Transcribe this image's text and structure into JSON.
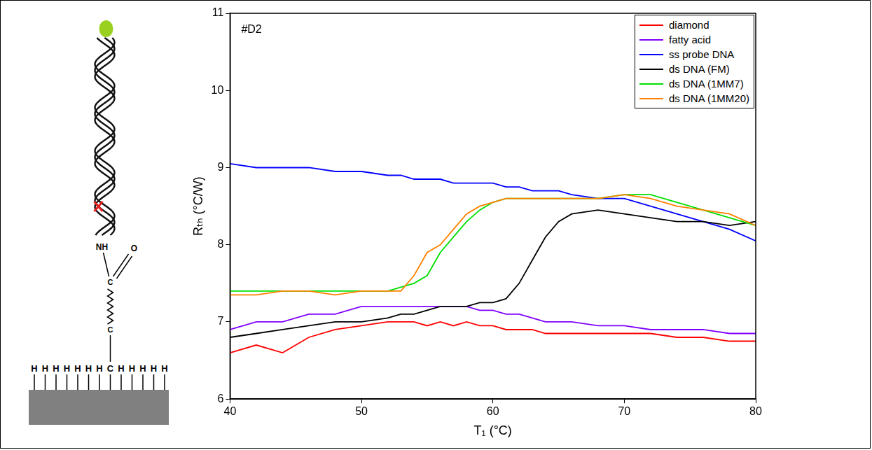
{
  "chart_data": {
    "type": "line",
    "annotation": "#D2",
    "x_label": "T₁ (°C)",
    "y_label": "Rₜₕ (°C/W)",
    "x": [
      40,
      42,
      44,
      46,
      48,
      50,
      52,
      53,
      54,
      55,
      56,
      57,
      58,
      59,
      60,
      61,
      62,
      63,
      64,
      65,
      66,
      68,
      70,
      72,
      74,
      76,
      78,
      80
    ],
    "series": [
      {
        "name": "diamond",
        "color": "#ff0000",
        "values": [
          6.6,
          6.7,
          6.6,
          6.8,
          6.9,
          6.95,
          7.0,
          7.0,
          7.0,
          6.95,
          7.0,
          6.95,
          7.0,
          6.95,
          6.95,
          6.9,
          6.9,
          6.9,
          6.85,
          6.85,
          6.85,
          6.85,
          6.85,
          6.85,
          6.8,
          6.8,
          6.75,
          6.75
        ]
      },
      {
        "name": "fatty acid",
        "color": "#8000ff",
        "values": [
          6.9,
          7.0,
          7.0,
          7.1,
          7.1,
          7.2,
          7.2,
          7.2,
          7.2,
          7.2,
          7.2,
          7.2,
          7.2,
          7.15,
          7.15,
          7.1,
          7.1,
          7.05,
          7.0,
          7.0,
          7.0,
          6.95,
          6.95,
          6.9,
          6.9,
          6.9,
          6.85,
          6.85
        ]
      },
      {
        "name": "ss probe DNA",
        "color": "#0000ff",
        "values": [
          9.05,
          9.0,
          9.0,
          9.0,
          8.95,
          8.95,
          8.9,
          8.9,
          8.85,
          8.85,
          8.85,
          8.8,
          8.8,
          8.8,
          8.8,
          8.75,
          8.75,
          8.7,
          8.7,
          8.7,
          8.65,
          8.6,
          8.6,
          8.5,
          8.4,
          8.3,
          8.2,
          8.05
        ]
      },
      {
        "name": "ds DNA (FM)",
        "color": "#000000",
        "values": [
          6.8,
          6.85,
          6.9,
          6.95,
          7.0,
          7.0,
          7.05,
          7.1,
          7.1,
          7.15,
          7.2,
          7.2,
          7.2,
          7.25,
          7.25,
          7.3,
          7.5,
          7.8,
          8.1,
          8.3,
          8.4,
          8.45,
          8.4,
          8.35,
          8.3,
          8.3,
          8.25,
          8.3
        ]
      },
      {
        "name": "ds DNA (1MM7)",
        "color": "#00e000",
        "values": [
          7.4,
          7.4,
          7.4,
          7.4,
          7.4,
          7.4,
          7.4,
          7.45,
          7.5,
          7.6,
          7.9,
          8.1,
          8.3,
          8.45,
          8.55,
          8.6,
          8.6,
          8.6,
          8.6,
          8.6,
          8.6,
          8.6,
          8.65,
          8.65,
          8.55,
          8.45,
          8.35,
          8.25
        ]
      },
      {
        "name": "ds DNA (1MM20)",
        "color": "#ff8000",
        "values": [
          7.35,
          7.35,
          7.4,
          7.4,
          7.35,
          7.4,
          7.4,
          7.4,
          7.6,
          7.9,
          8.0,
          8.2,
          8.4,
          8.5,
          8.55,
          8.6,
          8.6,
          8.6,
          8.6,
          8.6,
          8.6,
          8.6,
          8.65,
          8.6,
          8.5,
          8.45,
          8.4,
          8.25
        ]
      }
    ],
    "xlim": [
      40,
      80
    ],
    "xticks": [
      40,
      50,
      60,
      70,
      80
    ],
    "ylim": [
      6,
      11
    ],
    "yticks": [
      6,
      7,
      8,
      9,
      10,
      11
    ],
    "grid": false,
    "legend": "upper right"
  },
  "diagram": {
    "surface_atoms": [
      "H",
      "H",
      "H",
      "H",
      "H",
      "H",
      "H",
      "C",
      "H",
      "H",
      "H",
      "H",
      "H"
    ],
    "amide": "NH",
    "oxygen": "O",
    "carbonyl_carbon": "C",
    "chain_carbon": "C"
  }
}
